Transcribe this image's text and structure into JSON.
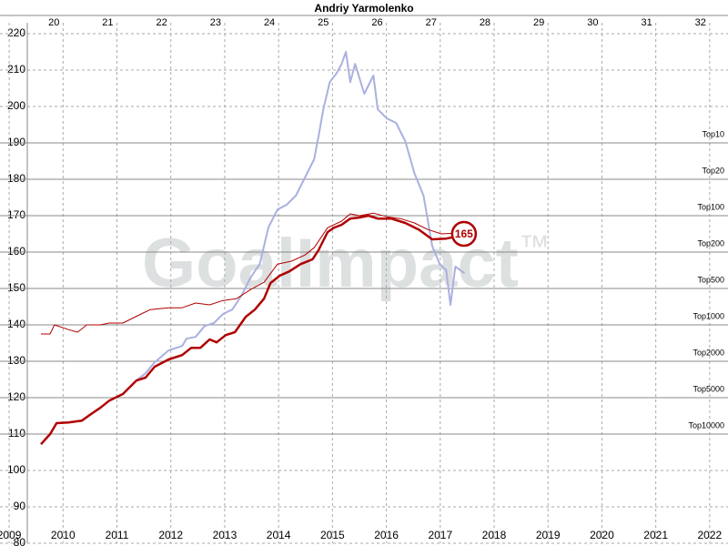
{
  "chart_data": {
    "type": "line",
    "title": "Andriy Yarmolenko",
    "watermark": "GoalImpact",
    "watermark_mark": "™",
    "xlim": [
      2008.83,
      2022.34
    ],
    "xticks": [
      2009,
      2010,
      2011,
      2012,
      2013,
      2014,
      2015,
      2016,
      2017,
      2018,
      2019,
      2020,
      2021,
      2022
    ],
    "x2lim": [
      19.0,
      32.51
    ],
    "x2ticks": [
      20,
      21,
      22,
      23,
      24,
      25,
      26,
      27,
      28,
      29,
      30,
      31,
      32
    ],
    "ylim": [
      80,
      220
    ],
    "yticks": [
      80,
      90,
      100,
      110,
      120,
      130,
      140,
      150,
      160,
      170,
      180,
      190,
      200,
      210,
      220
    ],
    "grid": true,
    "levels": [
      {
        "label": "Top10",
        "value": 190
      },
      {
        "label": "Top20",
        "value": 180
      },
      {
        "label": "Top100",
        "value": 170
      },
      {
        "label": "Top200",
        "value": 160
      },
      {
        "label": "Top500",
        "value": 150
      },
      {
        "label": "Top1000",
        "value": 140
      },
      {
        "label": "Top2000",
        "value": 130
      },
      {
        "label": "Top5000",
        "value": 120
      },
      {
        "label": "Top10000",
        "value": 110
      }
    ],
    "series": [
      {
        "color": "#aab0e0",
        "width": 2,
        "x": [
          2011.36,
          2011.53,
          2011.7,
          2011.96,
          2012.21,
          2012.29,
          2012.46,
          2012.63,
          2012.8,
          2012.97,
          2013.14,
          2013.31,
          2013.48,
          2013.65,
          2013.81,
          2013.98,
          2014.15,
          2014.32,
          2014.49,
          2014.66,
          2014.74,
          2014.83,
          2014.95,
          2015.08,
          2015.17,
          2015.25,
          2015.33,
          2015.42,
          2015.59,
          2015.76,
          2015.84,
          2016.01,
          2016.18,
          2016.35,
          2016.52,
          2016.69,
          2016.85,
          2016.99,
          2017.11,
          2017.19,
          2017.28,
          2017.45
        ],
        "values": [
          124.7,
          126.7,
          129.7,
          133,
          134.2,
          136.2,
          136.7,
          139.7,
          140.5,
          143,
          144.2,
          148,
          153,
          156.7,
          166.7,
          171.7,
          173,
          175.5,
          180.5,
          185.5,
          191.7,
          199.2,
          206.7,
          209.2,
          211.7,
          215,
          206.7,
          211.7,
          203.5,
          208.5,
          199.2,
          196.7,
          195.5,
          190.5,
          181.7,
          175.5,
          161.7,
          156.7,
          155,
          145.5,
          156,
          154.2
        ]
      },
      {
        "color": "#b00000",
        "width": 1,
        "x": [
          2009.59,
          2009.76,
          2009.84,
          2010.1,
          2010.27,
          2010.44,
          2010.69,
          2010.86,
          2011.11,
          2011.45,
          2011.62,
          2011.96,
          2012.21,
          2012.46,
          2012.72,
          2012.97,
          2013.22,
          2013.48,
          2013.73,
          2013.98,
          2014.24,
          2014.49,
          2014.66,
          2014.91,
          2015.17,
          2015.33,
          2015.5,
          2015.76,
          2016.01,
          2016.26,
          2016.52,
          2016.77,
          2017.02,
          2017.28
        ],
        "values": [
          137.5,
          137.5,
          140,
          138.7,
          138,
          140,
          140,
          140.5,
          140.5,
          143,
          144.2,
          144.7,
          144.7,
          146,
          145.5,
          146.7,
          147.2,
          149.7,
          151.7,
          156.7,
          157.5,
          159.2,
          161.2,
          166.7,
          168.5,
          170.5,
          170,
          170.7,
          169.7,
          169.2,
          168,
          166.2,
          165,
          165.2
        ]
      },
      {
        "color": "#b00000",
        "width": 2.5,
        "x": [
          2009.59,
          2009.76,
          2009.88,
          2010.1,
          2010.35,
          2010.52,
          2010.69,
          2010.86,
          2011.11,
          2011.36,
          2011.53,
          2011.7,
          2011.96,
          2012.21,
          2012.38,
          2012.55,
          2012.72,
          2012.85,
          2013.02,
          2013.19,
          2013.39,
          2013.56,
          2013.73,
          2013.85,
          2014.02,
          2014.2,
          2014.41,
          2014.63,
          2014.74,
          2014.91,
          2015.03,
          2015.17,
          2015.33,
          2015.5,
          2015.67,
          2015.84,
          2016.09,
          2016.35,
          2016.6,
          2016.85,
          2017.11,
          2017.28
        ],
        "values": [
          107.2,
          110,
          113,
          113.2,
          113.7,
          115.5,
          117.2,
          119.2,
          121,
          124.7,
          125.5,
          128.5,
          130.5,
          131.7,
          133.7,
          133.7,
          136,
          135.2,
          137.2,
          138,
          142.2,
          144.2,
          147.2,
          151.5,
          153.5,
          154.7,
          156.7,
          158,
          160.5,
          165.5,
          166.7,
          167.5,
          169.2,
          169.5,
          170,
          169.2,
          169.2,
          168,
          166.2,
          163.5,
          163.7,
          164.2
        ]
      }
    ],
    "annotation": {
      "x": 2017.44,
      "value": 165,
      "color": "#b00000"
    }
  }
}
